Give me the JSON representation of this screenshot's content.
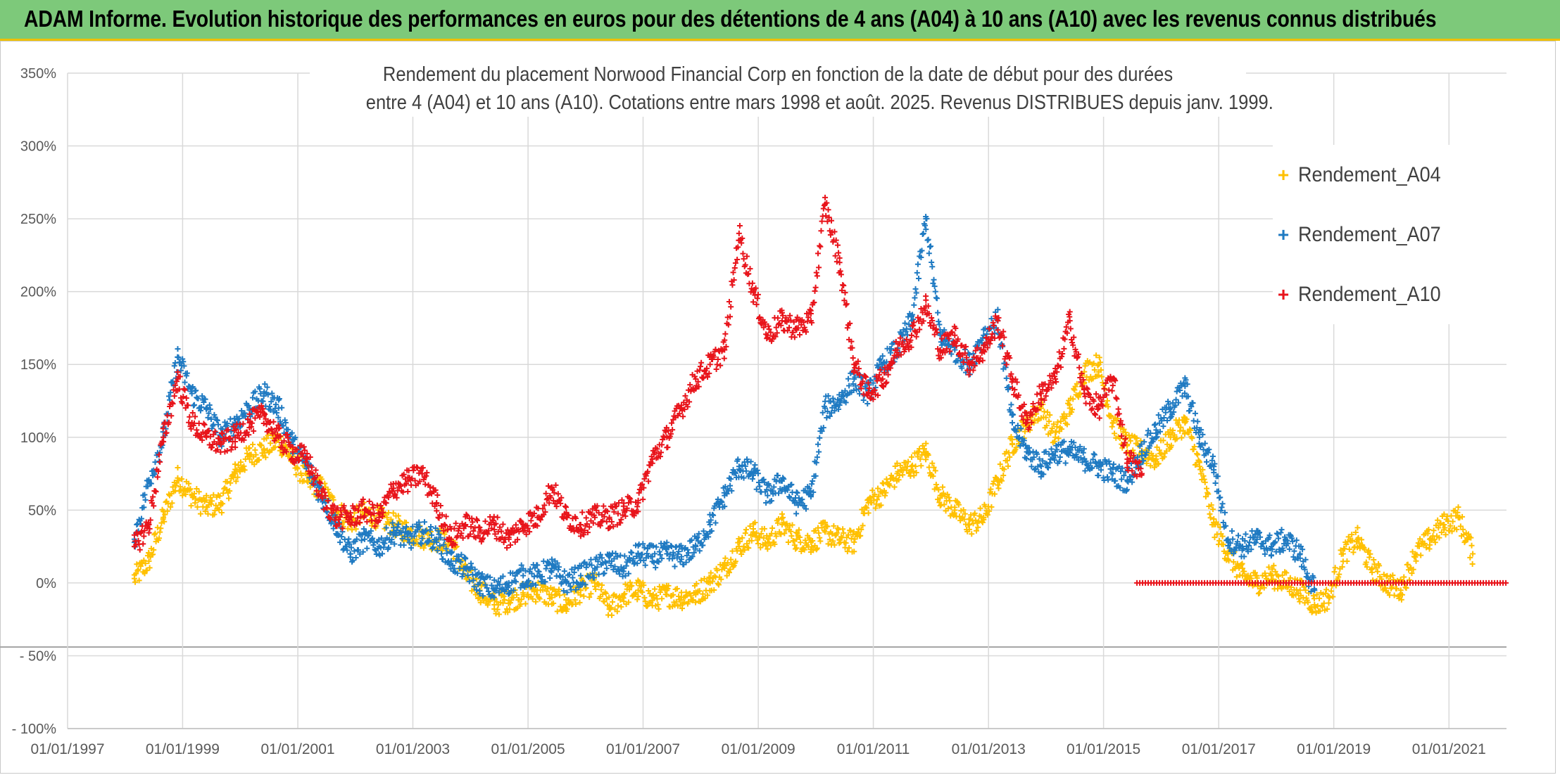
{
  "banner": {
    "title": "ADAM Informe. Evolution historique des performances en euros pour des détentions de 4 ans (A04) à 10 ans (A10) avec les revenus connus distribués",
    "background": "#7dc97a"
  },
  "chart_data": {
    "type": "scatter",
    "title_line1": "Rendement du placement Norwood Financial Corp en fonction de la date de début pour des durées",
    "title_line2": "entre 4 (A04) et 10 ans (A10). Cotations entre mars 1998 et août. 2025. Revenus DISTRIBUES depuis janv. 1999.",
    "xlabel": "",
    "ylabel": "",
    "x_range": [
      "1997-01-01",
      "2022-01-01"
    ],
    "x_ticks": [
      "01/01/1997",
      "01/01/1999",
      "01/01/2001",
      "01/01/2003",
      "01/01/2005",
      "01/01/2007",
      "01/01/2009",
      "01/01/2011",
      "01/01/2013",
      "01/01/2015",
      "01/01/2017",
      "01/01/2019",
      "01/01/2021"
    ],
    "y_range": [
      -100,
      350
    ],
    "y_ticks": [
      "- 100%",
      "- 50%",
      "0%",
      "50%",
      "100%",
      "150%",
      "200%",
      "250%",
      "300%",
      "350%"
    ],
    "grid": true,
    "legend_position": "top-right",
    "series": [
      {
        "name": "Rendement_A04",
        "color": "#ffc000",
        "x": [
          "1998-03-01",
          "1998-06-01",
          "1998-09-01",
          "1998-12-01",
          "1999-03-01",
          "1999-06-01",
          "1999-09-01",
          "1999-12-01",
          "2000-03-01",
          "2000-06-01",
          "2000-09-01",
          "2000-12-01",
          "2001-03-01",
          "2001-06-01",
          "2001-09-01",
          "2001-12-01",
          "2002-03-01",
          "2002-06-01",
          "2002-09-01",
          "2002-12-01",
          "2003-03-01",
          "2003-06-01",
          "2003-09-01",
          "2003-12-01",
          "2004-03-01",
          "2004-06-01",
          "2004-09-01",
          "2004-12-01",
          "2005-03-01",
          "2005-06-01",
          "2005-09-01",
          "2005-12-01",
          "2006-03-01",
          "2006-06-01",
          "2006-09-01",
          "2006-12-01",
          "2007-03-01",
          "2007-06-01",
          "2007-09-01",
          "2007-12-01",
          "2008-03-01",
          "2008-06-01",
          "2008-09-01",
          "2008-12-01",
          "2009-03-01",
          "2009-06-01",
          "2009-09-01",
          "2009-12-01",
          "2010-03-01",
          "2010-06-01",
          "2010-09-01",
          "2010-12-01",
          "2011-03-01",
          "2011-06-01",
          "2011-09-01",
          "2011-12-01",
          "2012-03-01",
          "2012-06-01",
          "2012-09-01",
          "2012-12-01",
          "2013-03-01",
          "2013-06-01",
          "2013-09-01",
          "2013-12-01",
          "2014-03-01",
          "2014-06-01",
          "2014-09-01",
          "2014-12-01",
          "2015-03-01",
          "2015-06-01",
          "2015-09-01",
          "2015-12-01",
          "2016-03-01",
          "2016-06-01",
          "2016-09-01",
          "2016-12-01",
          "2017-03-01",
          "2017-06-01",
          "2017-09-01",
          "2017-12-01",
          "2018-03-01",
          "2018-06-01",
          "2018-09-01",
          "2018-12-01",
          "2019-03-01",
          "2019-06-01",
          "2019-09-01",
          "2019-12-01",
          "2020-03-01",
          "2020-06-01",
          "2020-09-01",
          "2020-12-01",
          "2021-03-01",
          "2021-06-01"
        ],
        "y": [
          3,
          15,
          45,
          72,
          60,
          52,
          55,
          75,
          88,
          92,
          98,
          85,
          70,
          65,
          50,
          42,
          48,
          45,
          40,
          35,
          32,
          30,
          28,
          5,
          -5,
          -15,
          -12,
          -8,
          -5,
          -10,
          -15,
          -5,
          0,
          -18,
          -8,
          -5,
          -12,
          -8,
          -10,
          -8,
          0,
          10,
          25,
          35,
          28,
          40,
          30,
          28,
          35,
          30,
          28,
          55,
          62,
          75,
          80,
          90,
          60,
          50,
          40,
          45,
          70,
          95,
          110,
          120,
          100,
          120,
          145,
          150,
          110,
          95,
          90,
          85,
          100,
          110,
          80,
          40,
          20,
          5,
          0,
          5,
          0,
          -5,
          -15,
          -10,
          20,
          30,
          10,
          0,
          -5,
          20,
          30,
          40,
          45,
          20
        ]
      },
      {
        "name": "Rendement_A07",
        "color": "#1f7ac2",
        "x": [
          "1998-03-01",
          "1998-06-01",
          "1998-09-01",
          "1998-12-01",
          "1999-03-01",
          "1999-06-01",
          "1999-09-01",
          "1999-12-01",
          "2000-03-01",
          "2000-06-01",
          "2000-09-01",
          "2000-12-01",
          "2001-03-01",
          "2001-06-01",
          "2001-09-01",
          "2001-12-01",
          "2002-03-01",
          "2002-06-01",
          "2002-09-01",
          "2002-12-01",
          "2003-03-01",
          "2003-06-01",
          "2003-09-01",
          "2003-12-01",
          "2004-03-01",
          "2004-06-01",
          "2004-09-01",
          "2004-12-01",
          "2005-03-01",
          "2005-06-01",
          "2005-09-01",
          "2005-12-01",
          "2006-03-01",
          "2006-06-01",
          "2006-09-01",
          "2006-12-01",
          "2007-03-01",
          "2007-06-01",
          "2007-09-01",
          "2007-12-01",
          "2008-03-01",
          "2008-06-01",
          "2008-09-01",
          "2008-12-01",
          "2009-03-01",
          "2009-06-01",
          "2009-09-01",
          "2009-12-01",
          "2010-03-01",
          "2010-06-01",
          "2010-09-01",
          "2010-12-01",
          "2011-03-01",
          "2011-06-01",
          "2011-09-01",
          "2011-12-01",
          "2012-03-01",
          "2012-06-01",
          "2012-09-01",
          "2012-12-01",
          "2013-03-01",
          "2013-06-01",
          "2013-09-01",
          "2013-12-01",
          "2014-03-01",
          "2014-06-01",
          "2014-09-01",
          "2014-12-01",
          "2015-03-01",
          "2015-06-01",
          "2015-09-01",
          "2015-12-01",
          "2016-03-01",
          "2016-06-01",
          "2016-09-01",
          "2016-12-01",
          "2017-03-01",
          "2017-06-01",
          "2017-09-01",
          "2017-12-01",
          "2018-03-01",
          "2018-06-01",
          "2018-09-01"
        ],
        "y": [
          30,
          70,
          100,
          155,
          130,
          120,
          100,
          110,
          120,
          130,
          120,
          95,
          80,
          60,
          40,
          20,
          30,
          25,
          35,
          30,
          35,
          30,
          15,
          10,
          0,
          -5,
          0,
          5,
          5,
          10,
          0,
          5,
          10,
          15,
          10,
          20,
          18,
          20,
          18,
          25,
          40,
          60,
          80,
          75,
          60,
          70,
          55,
          60,
          120,
          125,
          140,
          130,
          150,
          160,
          180,
          250,
          170,
          160,
          150,
          170,
          180,
          110,
          90,
          80,
          90,
          90,
          85,
          80,
          75,
          70,
          90,
          105,
          120,
          135,
          100,
          80,
          30,
          25,
          30,
          25,
          30,
          20,
          -5
        ]
      },
      {
        "name": "Rendement_A10",
        "color": "#e8141b",
        "x": [
          "1998-03-01",
          "1998-06-01",
          "1998-09-01",
          "1998-12-01",
          "1999-03-01",
          "1999-06-01",
          "1999-09-01",
          "1999-12-01",
          "2000-03-01",
          "2000-06-01",
          "2000-09-01",
          "2000-12-01",
          "2001-03-01",
          "2001-06-01",
          "2001-09-01",
          "2001-12-01",
          "2002-03-01",
          "2002-06-01",
          "2002-09-01",
          "2002-12-01",
          "2003-03-01",
          "2003-06-01",
          "2003-09-01",
          "2003-12-01",
          "2004-03-01",
          "2004-06-01",
          "2004-09-01",
          "2004-12-01",
          "2005-03-01",
          "2005-06-01",
          "2005-09-01",
          "2005-12-01",
          "2006-03-01",
          "2006-06-01",
          "2006-09-01",
          "2006-12-01",
          "2007-03-01",
          "2007-06-01",
          "2007-09-01",
          "2007-12-01",
          "2008-03-01",
          "2008-06-01",
          "2008-09-01",
          "2008-12-01",
          "2009-03-01",
          "2009-06-01",
          "2009-09-01",
          "2009-12-01",
          "2010-03-01",
          "2010-06-01",
          "2010-09-01",
          "2010-12-01",
          "2011-03-01",
          "2011-06-01",
          "2011-09-01",
          "2011-12-01",
          "2012-03-01",
          "2012-06-01",
          "2012-09-01",
          "2012-12-01",
          "2013-03-01",
          "2013-06-01",
          "2013-09-01",
          "2013-12-01",
          "2014-03-01",
          "2014-06-01",
          "2014-09-01",
          "2014-12-01",
          "2015-03-01",
          "2015-06-01",
          "2015-09-01"
        ],
        "y": [
          25,
          40,
          100,
          140,
          110,
          100,
          95,
          100,
          110,
          115,
          100,
          90,
          85,
          60,
          45,
          45,
          50,
          45,
          65,
          70,
          75,
          55,
          30,
          40,
          35,
          40,
          30,
          40,
          45,
          65,
          45,
          40,
          45,
          45,
          50,
          55,
          85,
          100,
          120,
          140,
          150,
          160,
          240,
          200,
          170,
          180,
          175,
          180,
          260,
          220,
          150,
          130,
          140,
          160,
          170,
          190,
          160,
          170,
          150,
          160,
          180,
          140,
          110,
          130,
          140,
          180,
          130,
          120,
          140,
          85,
          75
        ]
      },
      {
        "name": "Rendement_A10",
        "color": "#e8141b",
        "x": [
          "2015-08-01",
          "2021-12-31"
        ],
        "y": [
          0,
          0
        ],
        "style": "flat-run"
      }
    ]
  }
}
